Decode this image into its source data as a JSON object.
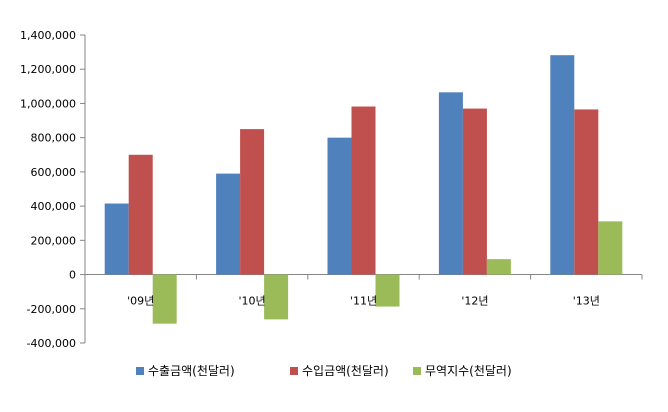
{
  "chart_data": {
    "type": "bar",
    "categories": [
      "'09년",
      "'10년",
      "'11년",
      "'12년",
      "'13년"
    ],
    "series": [
      {
        "name": "수출금액(천달러)",
        "color": "#4f81bd",
        "values": [
          415000,
          590000,
          800000,
          1065000,
          1282000
        ]
      },
      {
        "name": "수입금액(천달러)",
        "color": "#c0504d",
        "values": [
          700000,
          850000,
          982000,
          970000,
          965000
        ]
      },
      {
        "name": "무역지수(천달러)",
        "color": "#9bbb59",
        "values": [
          -287000,
          -262000,
          -187000,
          90000,
          311000
        ]
      }
    ],
    "y_ticks": [
      "1,400,000",
      "1,200,000",
      "1,000,000",
      "800,000",
      "600,000",
      "400,000",
      "200,000",
      "0",
      "-200,000",
      "-400,000"
    ],
    "ylim": [
      -400000,
      1400000
    ],
    "grid": false,
    "legend_position": "bottom",
    "title": "",
    "xlabel": "",
    "ylabel": ""
  }
}
